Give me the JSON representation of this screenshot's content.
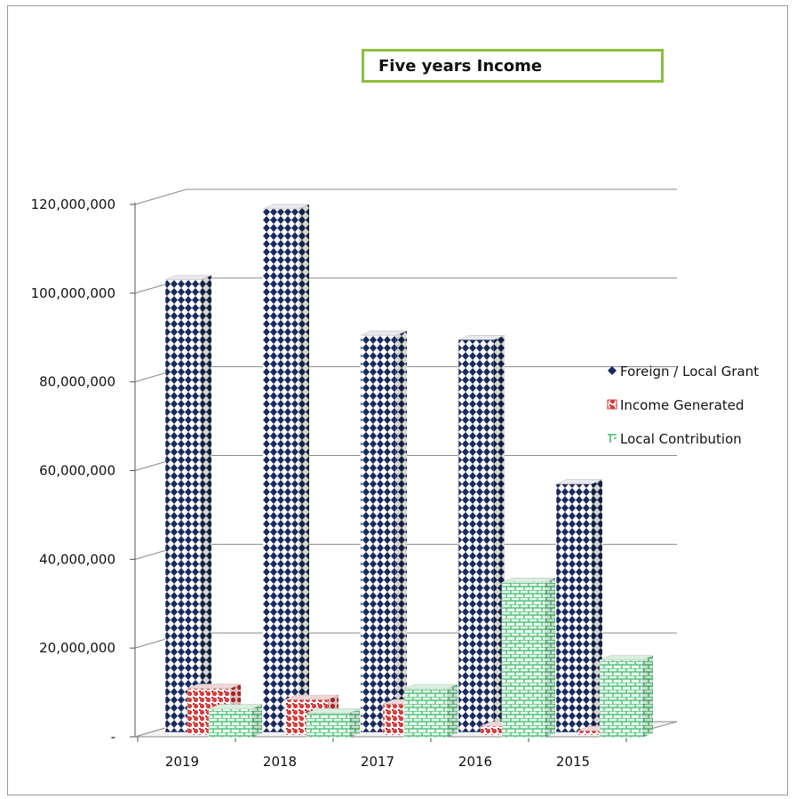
{
  "chart_data": {
    "type": "bar",
    "title": "Five years Income",
    "categories": [
      "2019",
      "2018",
      "2017",
      "2016",
      "2015"
    ],
    "series": [
      {
        "name": "Foreign / Local Grant",
        "values": [
          102000000,
          118000000,
          89500000,
          88500000,
          56000000
        ],
        "color": "#1b2a5e"
      },
      {
        "name": "Income Generated",
        "values": [
          10500000,
          8000000,
          7000000,
          2000000,
          1000000
        ],
        "color": "#d63b3b"
      },
      {
        "name": "Local Contribution",
        "values": [
          6500000,
          5500000,
          11000000,
          35000000,
          17500000
        ],
        "color": "#3dbb6a"
      }
    ],
    "y_ticks": [
      "-",
      "20,000,000",
      "40,000,000",
      "60,000,000",
      "80,000,000",
      "100,000,000",
      "120,000,000"
    ],
    "ylim": [
      0,
      120000000
    ],
    "legend_position": "right",
    "grid": true
  }
}
